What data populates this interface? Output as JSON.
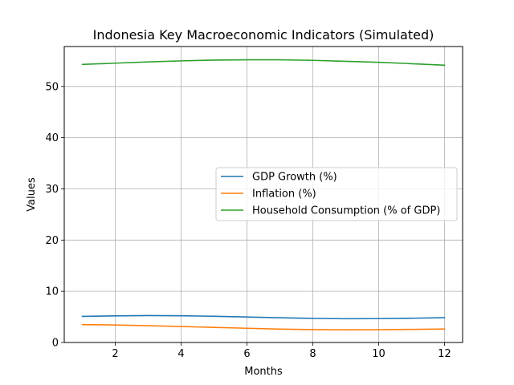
{
  "chart_data": {
    "type": "line",
    "title": "Indonesia Key Macroeconomic Indicators (Simulated)",
    "xlabel": "Months",
    "ylabel": "Values",
    "xlim": [
      0.45,
      12.55
    ],
    "ylim": [
      0,
      57.8
    ],
    "xticks": [
      2,
      4,
      6,
      8,
      10,
      12
    ],
    "yticks": [
      0,
      10,
      20,
      30,
      40,
      50
    ],
    "grid": true,
    "legend_position": "center-right",
    "x": [
      1,
      2,
      3,
      4,
      5,
      6,
      7,
      8,
      9,
      10,
      11,
      12
    ],
    "series": [
      {
        "name": "GDP Growth (%)",
        "color": "#1f77b4",
        "values": [
          5.1,
          5.2,
          5.25,
          5.22,
          5.12,
          4.98,
          4.82,
          4.7,
          4.64,
          4.66,
          4.74,
          4.85
        ]
      },
      {
        "name": "Inflation (%)",
        "color": "#ff7f0e",
        "values": [
          3.5,
          3.42,
          3.28,
          3.12,
          2.95,
          2.78,
          2.62,
          2.52,
          2.48,
          2.5,
          2.56,
          2.64
        ]
      },
      {
        "name": "Household Consumption (% of GDP)",
        "color": "#2ca02c",
        "values": [
          54.3,
          54.55,
          54.8,
          55.0,
          55.15,
          55.2,
          55.2,
          55.1,
          54.92,
          54.72,
          54.45,
          54.15
        ]
      }
    ]
  }
}
